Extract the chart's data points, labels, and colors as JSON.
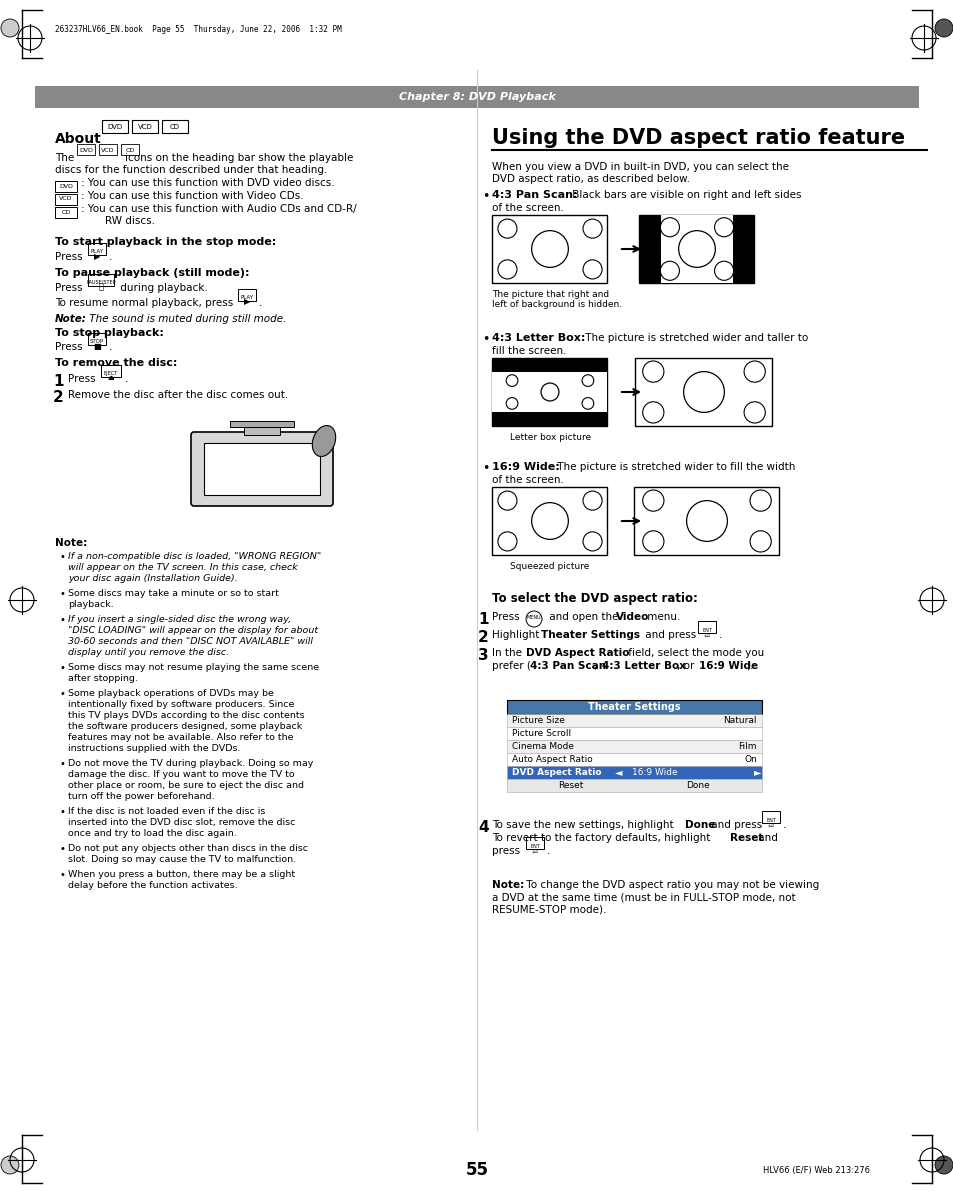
{
  "page_bg": "#ffffff",
  "header_bg": "#888888",
  "header_text": "Chapter 8: DVD Playback",
  "header_text_color": "#ffffff",
  "page_number": "55",
  "footer_text": "HLV66 (E/F) Web 213:276",
  "top_file_text": "263237HLV66_EN.book  Page 55  Thursday, June 22, 2006  1:32 PM",
  "right_title": "Using the DVD aspect ratio feature",
  "notes": [
    "If a non-compatible disc is loaded, \"WRONG REGION\" will appear on the TV screen. In this case, check your disc again (Installation Guide).",
    "Some discs may take a minute or so to start playback.",
    "If you insert a single-sided disc the wrong way, \"DISC LOADING\" will appear on the display for about 30-60 seconds and then \"DISC NOT AVAILABLE\" will display until you remove the disc.",
    "Some discs may not resume playing the same scene after stopping.",
    "Some playback operations of DVDs may be intentionally fixed by software producers. Since this TV plays DVDs according to the disc contents the software producers designed, some playback features may not be available. Also refer to the instructions supplied with the DVDs.",
    "Do not move the TV during playback. Doing so may damage the disc. If you want to move the TV to other place or room, be sure to eject the disc and turn off the power beforehand.",
    "If the disc is not loaded even if the disc is inserted into the DVD disc slot, remove the disc once and try to load the disc again.",
    "Do not put any objects other than discs in the disc slot. Doing so may cause the TV to malfunction.",
    "When you press a button, there may be a slight delay before the function activates."
  ]
}
